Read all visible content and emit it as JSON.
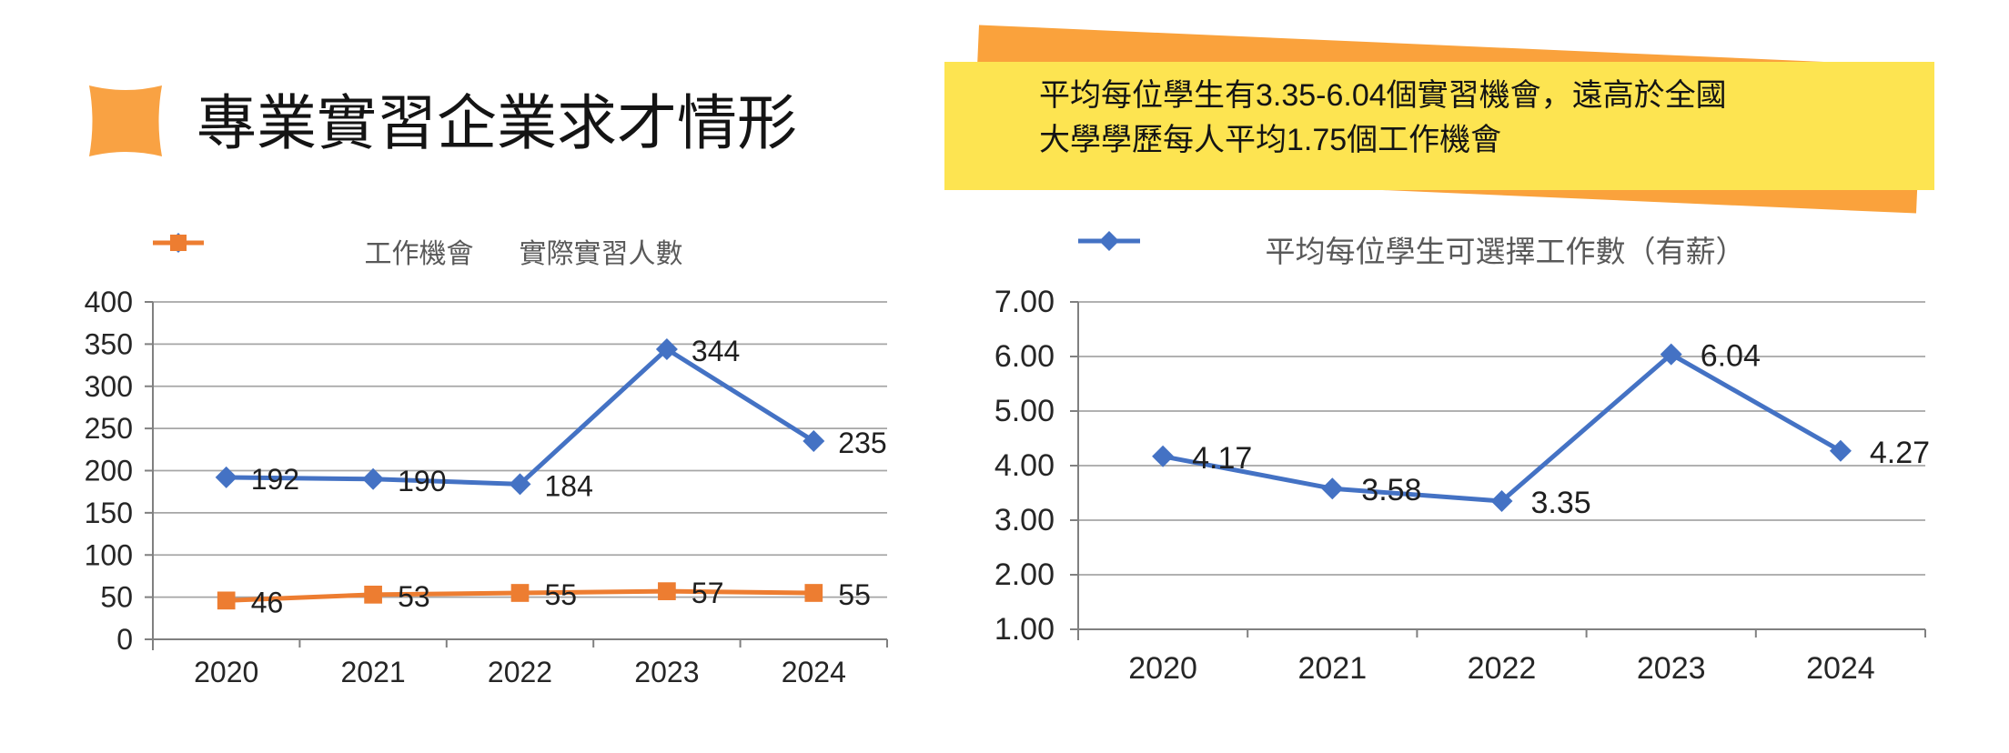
{
  "page": {
    "background": "#ffffff"
  },
  "header": {
    "title": "專業實習企業求才情形",
    "bullet_color": "#F9A243"
  },
  "callout": {
    "line1": "平均每位學生有3.35-6.04個實習機會，遠高於全國",
    "line2": "大學學歷每人平均1.75個工作機會",
    "bg": "#FDE451",
    "accent": "#FAA23C",
    "text_color": "#141414"
  },
  "chart_style": {
    "grid_color": "#A6A6A6",
    "axis_color": "#808080",
    "tick_label_color": "#262626",
    "data_label_color": "#1f1f1f",
    "legend_text_color": "#595959"
  },
  "chart_data": [
    {
      "type": "line",
      "title": "",
      "xlabel": "",
      "ylabel": "",
      "categories": [
        "2020",
        "2021",
        "2022",
        "2023",
        "2024"
      ],
      "series": [
        {
          "name": "工作機會",
          "values": [
            192,
            190,
            184,
            344,
            235
          ],
          "color": "#4472C4",
          "marker": "diamond"
        },
        {
          "name": "實際實習人數",
          "values": [
            46,
            53,
            55,
            57,
            55
          ],
          "color": "#ED7D31",
          "marker": "square"
        }
      ],
      "ylim": [
        0,
        400
      ],
      "ytick_step": 50,
      "ytick_labels": [
        "0",
        "50",
        "100",
        "150",
        "200",
        "250",
        "300",
        "350",
        "400"
      ],
      "label_format": "int",
      "grid": true,
      "legend_position": "top"
    },
    {
      "type": "line",
      "title": "",
      "xlabel": "",
      "ylabel": "",
      "categories": [
        "2020",
        "2021",
        "2022",
        "2023",
        "2024"
      ],
      "series": [
        {
          "name": "平均每位學生可選擇工作數（有薪）",
          "values": [
            4.17,
            3.58,
            3.35,
            6.04,
            4.27
          ],
          "color": "#4472C4",
          "marker": "diamond"
        }
      ],
      "ylim": [
        1,
        7
      ],
      "ytick_step": 1,
      "ytick_labels": [
        "1.00",
        "2.00",
        "3.00",
        "4.00",
        "5.00",
        "6.00",
        "7.00"
      ],
      "label_format": "2dp",
      "grid": true,
      "legend_position": "top"
    }
  ]
}
